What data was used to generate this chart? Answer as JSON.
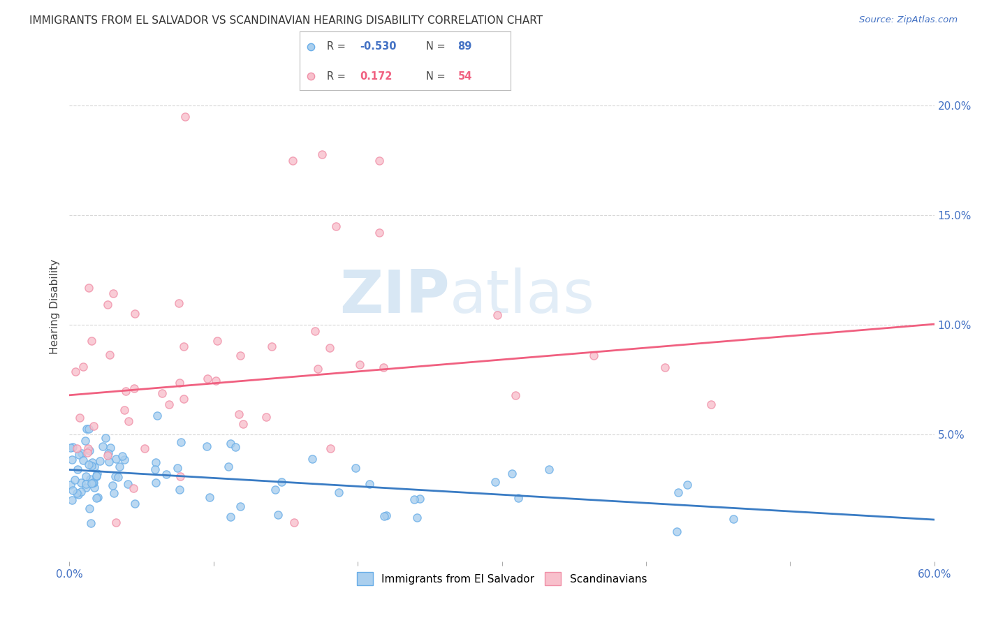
{
  "title": "IMMIGRANTS FROM EL SALVADOR VS SCANDINAVIAN HEARING DISABILITY CORRELATION CHART",
  "source": "Source: ZipAtlas.com",
  "ylabel": "Hearing Disability",
  "y_ticks": [
    0.0,
    0.05,
    0.1,
    0.15,
    0.2
  ],
  "y_tick_labels": [
    "",
    "5.0%",
    "10.0%",
    "15.0%",
    "20.0%"
  ],
  "xlim": [
    0.0,
    0.6
  ],
  "ylim": [
    -0.008,
    0.225
  ],
  "series_blue": {
    "label": "Immigrants from El Salvador",
    "R": -0.53,
    "N": 89,
    "color": "#6aaee8",
    "color_fill": "#aacfee",
    "trend_color": "#3a7cc4"
  },
  "series_pink": {
    "label": "Scandinavians",
    "R": 0.172,
    "N": 54,
    "color": "#f090a8",
    "color_fill": "#f8c0cc",
    "trend_color": "#f06080"
  },
  "background_color": "#ffffff",
  "grid_color": "#d8d8d8",
  "title_fontsize": 11,
  "axis_color": "#4472c4",
  "blue_trend_intercept": 0.034,
  "blue_trend_slope": -0.038,
  "pink_trend_intercept": 0.068,
  "pink_trend_slope": 0.054
}
